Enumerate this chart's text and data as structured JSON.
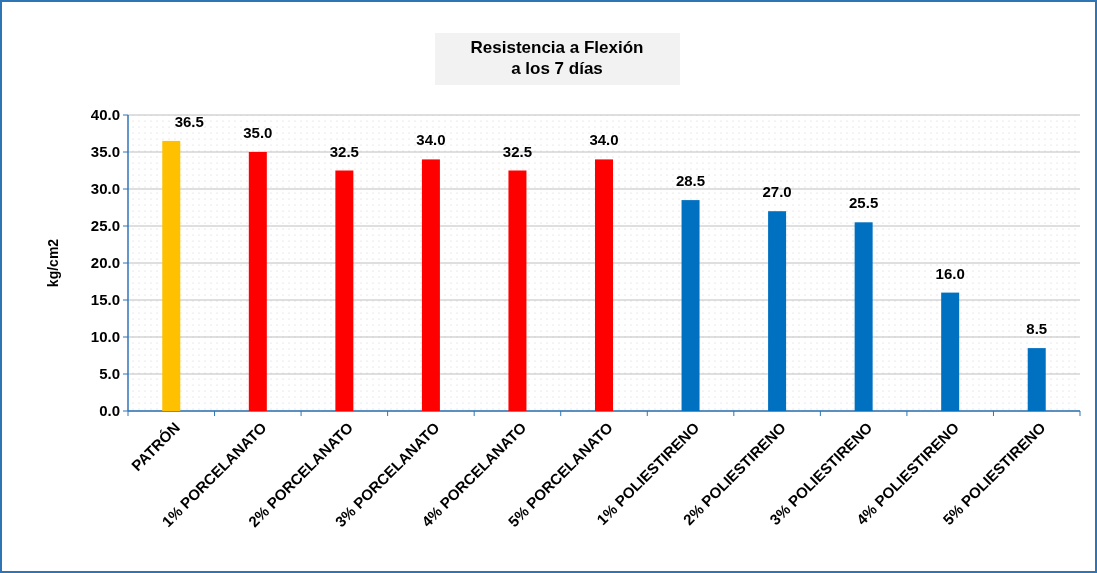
{
  "chart_data": {
    "type": "bar",
    "title": "Resistencia a Flexión\na los 7 días",
    "ylabel": "kg/cm2",
    "categories": [
      "PATRÓN",
      "1% PORCELANATO",
      "2% PORCELANATO",
      "3% PORCELANATO",
      "4% PORCELANATO",
      "5% PORCELANATO",
      "1% POLIESTIRENO",
      "2% POLIESTIRENO",
      "3% POLIESTIRENO",
      "4% POLIESTIRENO",
      "5% POLIESTIRENO"
    ],
    "values": [
      36.5,
      35.0,
      32.5,
      34.0,
      32.5,
      34.0,
      28.5,
      27.0,
      25.5,
      16.0,
      8.5
    ],
    "colors": [
      "#ffc000",
      "#ff0000",
      "#ff0000",
      "#ff0000",
      "#ff0000",
      "#ff0000",
      "#0070c0",
      "#0070c0",
      "#0070c0",
      "#0070c0",
      "#0070c0"
    ],
    "value_labels": [
      "36.5",
      "35.0",
      "32.5",
      "34.0",
      "32.5",
      "34.0",
      "28.5",
      "27.0",
      "25.5",
      "16.0",
      "8.5"
    ],
    "ylim": [
      0,
      40
    ],
    "yticks": [
      {
        "value": 0,
        "label": "0.0"
      },
      {
        "value": 5,
        "label": "5.0"
      },
      {
        "value": 10,
        "label": "10.0"
      },
      {
        "value": 15,
        "label": "15.0"
      },
      {
        "value": 20,
        "label": "20.0"
      },
      {
        "value": 25,
        "label": "25.0"
      },
      {
        "value": 30,
        "label": "30.0"
      },
      {
        "value": 35,
        "label": "35.0"
      },
      {
        "value": 40,
        "label": "40.0"
      }
    ],
    "grid": "y"
  }
}
